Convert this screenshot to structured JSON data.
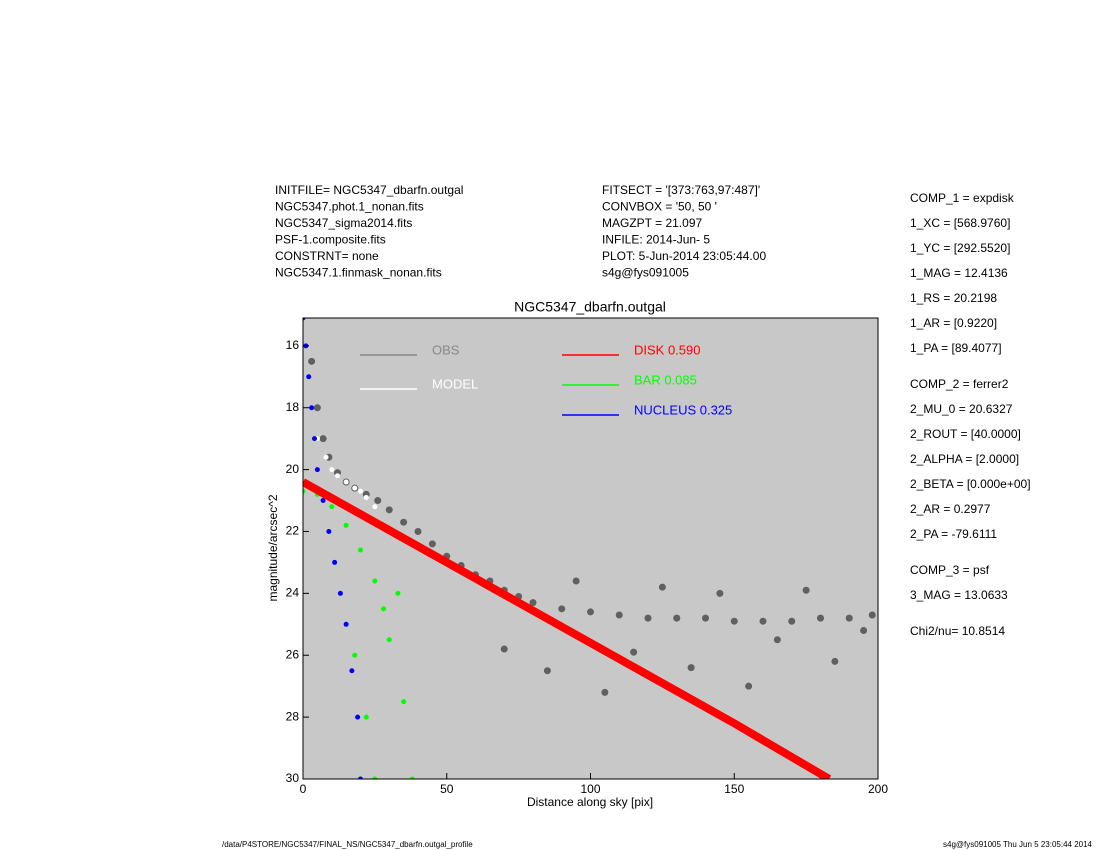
{
  "header": {
    "left": [
      "INITFILE= NGC5347_dbarfn.outgal",
      "NGC5347.phot.1_nonan.fits",
      "NGC5347_sigma2014.fits",
      "PSF-1.composite.fits",
      "CONSTRNT= none",
      "NGC5347.1.finmask_nonan.fits"
    ],
    "middle": [
      "FITSECT = '[373:763,97:487]'",
      "CONVBOX = '50, 50  '",
      "MAGZPT  =              21.097",
      "INFILE: 2014-Jun- 5",
      "PLOT:  5-Jun-2014 23:05:44.00",
      "s4g@fys091005"
    ]
  },
  "params": [
    [
      "COMP_1  = expdisk",
      "1_XC    = [568.9760]",
      "1_YC    = [292.5520]",
      "1_MAG   = 12.4136",
      "1_RS    = 20.2198",
      "1_AR    = [0.9220]",
      "1_PA    = [89.4077]"
    ],
    [
      "COMP_2  = ferrer2",
      "2_MU_0  = 20.6327",
      "2_ROUT  = [40.0000]",
      "2_ALPHA = [2.0000]",
      "2_BETA  = [0.000e+00]",
      "2_AR    = 0.2977",
      "2_PA    = -79.6111"
    ],
    [
      "COMP_3  = psf",
      "3_MAG   = 13.0633"
    ],
    [
      "Chi2/nu=      10.8514"
    ]
  ],
  "footer": {
    "left": "/data/P4STORE/NGC5347/FINAL_NS/NGC5347_dbarfn.outgal_profile",
    "right": "s4g@fys091005  Thu Jun  5 23:05:44 2014"
  },
  "chart_data": {
    "type": "scatter",
    "title": "NGC5347_dbarfn.outgal",
    "xlabel": "Distance along sky [pix]",
    "ylabel": "magnitude/arcsec^2",
    "xlim": [
      0,
      200
    ],
    "ylim": [
      30,
      15.1
    ],
    "xticks": [
      0,
      50,
      100,
      150,
      200
    ],
    "yticks": [
      16,
      18,
      20,
      22,
      24,
      26,
      28,
      30
    ],
    "background": "#c8c8c8",
    "series": [
      {
        "name": "OBS",
        "color": "#606060",
        "mode": "markers",
        "x": [
          3,
          5,
          7,
          9,
          12,
          15,
          18,
          22,
          26,
          30,
          35,
          40,
          45,
          50,
          55,
          60,
          65,
          70,
          75,
          80,
          90,
          100,
          110,
          120,
          130,
          140,
          150,
          160,
          170,
          180,
          190,
          198,
          70,
          85,
          95,
          105,
          115,
          125,
          135,
          145,
          155,
          165,
          175,
          185,
          195
        ],
        "values": [
          16.5,
          18.0,
          19.0,
          19.6,
          20.1,
          20.4,
          20.6,
          20.8,
          21.0,
          21.3,
          21.7,
          22.0,
          22.4,
          22.8,
          23.1,
          23.4,
          23.6,
          23.9,
          24.1,
          24.3,
          24.5,
          24.6,
          24.7,
          24.8,
          24.8,
          24.8,
          24.9,
          24.9,
          24.9,
          24.8,
          24.8,
          24.7,
          25.8,
          26.5,
          23.6,
          27.2,
          25.9,
          23.8,
          26.4,
          24.0,
          27.0,
          25.5,
          23.9,
          26.2,
          25.2
        ]
      },
      {
        "name": "MODEL",
        "color": "#ffffff",
        "mode": "markers",
        "x": [
          5,
          8,
          10,
          12,
          15,
          18,
          20,
          22,
          25
        ],
        "values": [
          19.0,
          19.6,
          20.0,
          20.2,
          20.4,
          20.6,
          20.7,
          20.9,
          21.2
        ]
      },
      {
        "name": "BAR  0.085",
        "color": "#00ff00",
        "mode": "markers",
        "x": [
          0,
          5,
          10,
          15,
          20,
          25,
          28,
          30,
          35,
          38,
          22,
          18,
          25,
          33
        ],
        "values": [
          20.7,
          20.8,
          21.2,
          21.8,
          22.6,
          23.6,
          24.5,
          25.5,
          27.5,
          30,
          28,
          26,
          30,
          24
        ]
      },
      {
        "name": "NUCLEUS  0.325",
        "color": "#0000ff",
        "mode": "markers",
        "x": [
          0,
          1,
          2,
          3,
          4,
          5,
          7,
          9,
          11,
          13,
          15,
          17,
          19,
          20
        ],
        "values": [
          15.1,
          16.0,
          17.0,
          18.0,
          19.0,
          20.0,
          21.0,
          22.0,
          23.0,
          24.0,
          25.0,
          26.5,
          28.0,
          30.0
        ]
      },
      {
        "name": "DISK  0.590",
        "color": "#ff0000",
        "mode": "lines",
        "x": [
          0,
          50,
          100,
          150,
          183
        ],
        "values": [
          20.4,
          23.0,
          25.6,
          28.2,
          30.0
        ]
      }
    ]
  }
}
